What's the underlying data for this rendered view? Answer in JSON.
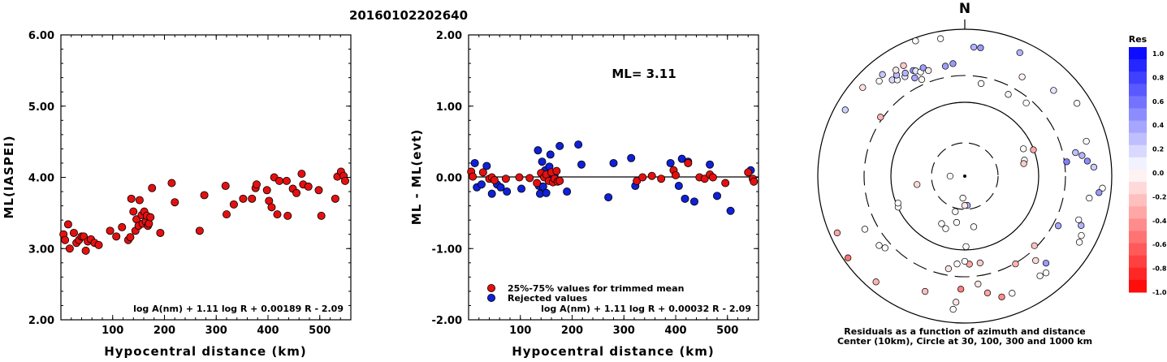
{
  "title": "20160102202640",
  "chart_data": [
    {
      "type": "scatter",
      "ylabel": "ML(IASPEI)",
      "xlabel": "Hypocentral distance (km)",
      "xlim": [
        0,
        560
      ],
      "ylim": [
        2.0,
        6.0
      ],
      "x_ticks": [
        "100",
        "200",
        "300",
        "400",
        "500"
      ],
      "y_ticks": [
        "2.00",
        "3.00",
        "4.00",
        "5.00",
        "6.00"
      ],
      "formula": "log A(nm) + 1.11 log R + 0.00189 R - 2.09",
      "marker_color": "#e41010",
      "points": [
        [
          5,
          3.2
        ],
        [
          8,
          3.12
        ],
        [
          14,
          3.34
        ],
        [
          17,
          3.0
        ],
        [
          25,
          3.22
        ],
        [
          30,
          3.08
        ],
        [
          35,
          3.12
        ],
        [
          40,
          3.17
        ],
        [
          44,
          3.17
        ],
        [
          48,
          2.97
        ],
        [
          52,
          3.1
        ],
        [
          58,
          3.13
        ],
        [
          65,
          3.08
        ],
        [
          73,
          3.05
        ],
        [
          95,
          3.25
        ],
        [
          107,
          3.17
        ],
        [
          118,
          3.3
        ],
        [
          130,
          3.12
        ],
        [
          134,
          3.16
        ],
        [
          136,
          3.7
        ],
        [
          140,
          3.52
        ],
        [
          144,
          3.25
        ],
        [
          146,
          3.41
        ],
        [
          150,
          3.32
        ],
        [
          152,
          3.68
        ],
        [
          156,
          3.47
        ],
        [
          158,
          3.35
        ],
        [
          161,
          3.52
        ],
        [
          164,
          3.38
        ],
        [
          166,
          3.46
        ],
        [
          168,
          3.32
        ],
        [
          170,
          3.35
        ],
        [
          173,
          3.44
        ],
        [
          176,
          3.85
        ],
        [
          192,
          3.22
        ],
        [
          214,
          3.92
        ],
        [
          220,
          3.65
        ],
        [
          268,
          3.25
        ],
        [
          277,
          3.75
        ],
        [
          318,
          3.88
        ],
        [
          320,
          3.48
        ],
        [
          334,
          3.62
        ],
        [
          352,
          3.7
        ],
        [
          369,
          3.7
        ],
        [
          376,
          3.85
        ],
        [
          378,
          3.9
        ],
        [
          398,
          3.82
        ],
        [
          402,
          3.67
        ],
        [
          407,
          3.58
        ],
        [
          412,
          4.0
        ],
        [
          418,
          3.48
        ],
        [
          422,
          3.95
        ],
        [
          436,
          3.95
        ],
        [
          438,
          3.46
        ],
        [
          448,
          3.84
        ],
        [
          455,
          3.78
        ],
        [
          465,
          4.05
        ],
        [
          468,
          3.9
        ],
        [
          478,
          3.87
        ],
        [
          498,
          3.82
        ],
        [
          503,
          3.46
        ],
        [
          530,
          3.7
        ],
        [
          534,
          4.01
        ],
        [
          541,
          4.08
        ],
        [
          546,
          4.02
        ],
        [
          549,
          3.95
        ]
      ]
    },
    {
      "type": "scatter",
      "ylabel": "ML - ML(evt)",
      "xlabel": "Hypocentral distance (km)",
      "xlim": [
        0,
        560
      ],
      "ylim": [
        -2.0,
        2.0
      ],
      "x_ticks": [
        "100",
        "200",
        "300",
        "400",
        "500"
      ],
      "y_ticks": [
        "-2.00",
        "-1.00",
        "0.00",
        "1.00",
        "2.00"
      ],
      "annotation": "ML= 3.11",
      "formula": "log A(nm) + 1.11 log R + 0.00032 R - 2.09",
      "legend": [
        {
          "name": "25%-75% values for trimmed mean",
          "color": "#e41010"
        },
        {
          "name": "Rejected values",
          "color": "#1020d8"
        }
      ],
      "series": [
        {
          "name": "25%-75% values for trimmed mean",
          "color": "#e41010",
          "points": [
            [
              5,
              0.08
            ],
            [
              8,
              0.01
            ],
            [
              28,
              0.07
            ],
            [
              40,
              -0.02
            ],
            [
              45,
              0.0
            ],
            [
              50,
              -0.04
            ],
            [
              72,
              -0.02
            ],
            [
              98,
              0.0
            ],
            [
              118,
              -0.01
            ],
            [
              132,
              -0.08
            ],
            [
              140,
              0.06
            ],
            [
              146,
              0.0
            ],
            [
              150,
              0.04
            ],
            [
              155,
              -0.05
            ],
            [
              160,
              0.07
            ],
            [
              163,
              -0.07
            ],
            [
              166,
              -0.02
            ],
            [
              170,
              0.09
            ],
            [
              172,
              -0.06
            ],
            [
              176,
              -0.05
            ],
            [
              325,
              -0.05
            ],
            [
              336,
              0.0
            ],
            [
              354,
              0.02
            ],
            [
              372,
              -0.02
            ],
            [
              396,
              0.1
            ],
            [
              400,
              0.03
            ],
            [
              424,
              0.2
            ],
            [
              446,
              0.0
            ],
            [
              456,
              -0.02
            ],
            [
              466,
              0.04
            ],
            [
              472,
              0.0
            ],
            [
              496,
              -0.08
            ],
            [
              540,
              0.07
            ],
            [
              549,
              -0.02
            ],
            [
              551,
              -0.06
            ]
          ]
        },
        {
          "name": "Rejected values",
          "color": "#1020d8",
          "points": [
            [
              12,
              0.2
            ],
            [
              16,
              -0.14
            ],
            [
              25,
              -0.1
            ],
            [
              35,
              0.16
            ],
            [
              45,
              -0.23
            ],
            [
              55,
              -0.1
            ],
            [
              62,
              -0.14
            ],
            [
              74,
              -0.2
            ],
            [
              102,
              -0.16
            ],
            [
              134,
              0.38
            ],
            [
              136,
              -0.12
            ],
            [
              138,
              -0.23
            ],
            [
              142,
              0.22
            ],
            [
              144,
              -0.13
            ],
            [
              148,
              0.1
            ],
            [
              150,
              -0.22
            ],
            [
              156,
              0.15
            ],
            [
              158,
              0.32
            ],
            [
              162,
              0.0
            ],
            [
              166,
              0.04
            ],
            [
              176,
              0.44
            ],
            [
              190,
              -0.2
            ],
            [
              212,
              0.46
            ],
            [
              218,
              0.18
            ],
            [
              270,
              -0.28
            ],
            [
              280,
              0.2
            ],
            [
              314,
              0.27
            ],
            [
              322,
              -0.12
            ],
            [
              390,
              0.2
            ],
            [
              406,
              -0.12
            ],
            [
              412,
              0.26
            ],
            [
              418,
              -0.3
            ],
            [
              424,
              0.22
            ],
            [
              436,
              -0.34
            ],
            [
              466,
              0.18
            ],
            [
              480,
              -0.26
            ],
            [
              506,
              -0.47
            ],
            [
              545,
              0.1
            ]
          ]
        }
      ]
    },
    {
      "type": "scatter",
      "projection": "polar",
      "north_label": "N",
      "caption_line1": "Residuals as a function of azimuth and distance",
      "caption_line2": "Center (10km), Circle at 30, 100, 300 and 1000 km",
      "colorbar_title": "Res",
      "colorbar_labels": [
        "1.0",
        "0.8",
        "0.6",
        "0.4",
        "0.2",
        "0.0",
        "-0.2",
        "-0.4",
        "-0.6",
        "-0.8",
        "-1.0"
      ],
      "color_high": "#0000ff",
      "color_low": "#ff0000",
      "circles_km": [
        30,
        100,
        300,
        1000
      ],
      "stations": [
        {
          "az": -125,
          "r": 0.97,
          "res": -0.55
        },
        {
          "az": -114,
          "r": 0.95,
          "res": -0.35
        },
        {
          "az": -61,
          "r": 0.93,
          "res": 0.18
        },
        {
          "az": -49,
          "r": 0.92,
          "res": -0.12
        },
        {
          "az": -42,
          "r": 0.87,
          "res": 0.0
        },
        {
          "az": -39,
          "r": 0.89,
          "res": 0.22
        },
        {
          "az": -37,
          "r": 0.82,
          "res": 0.15
        },
        {
          "az": -35,
          "r": 0.8,
          "res": 0.05
        },
        {
          "az": -34,
          "r": 0.83,
          "res": 0.25
        },
        {
          "az": -33,
          "r": 0.86,
          "res": -0.1
        },
        {
          "az": -31,
          "r": 0.79,
          "res": 0.1
        },
        {
          "az": -30,
          "r": 0.81,
          "res": 0.3
        },
        {
          "az": -29,
          "r": 0.86,
          "res": -0.22
        },
        {
          "az": -27,
          "r": 0.75,
          "res": 0.35
        },
        {
          "az": -26,
          "r": 0.8,
          "res": 0.4
        },
        {
          "az": -25,
          "r": 0.79,
          "res": 0.1
        },
        {
          "az": -23,
          "r": 0.77,
          "res": 0.0
        },
        {
          "az": -21,
          "r": 0.79,
          "res": 0.38
        },
        {
          "az": -19,
          "r": 0.76,
          "res": -0.08
        },
        {
          "az": -10,
          "r": 0.76,
          "res": 0.38
        },
        {
          "az": -6,
          "r": 0.77,
          "res": 0.4
        },
        {
          "az": 10,
          "r": 0.64,
          "res": 0.0
        },
        {
          "az": 4,
          "r": 0.88,
          "res": 0.3
        },
        {
          "az": 7,
          "r": 0.88,
          "res": 0.4
        },
        {
          "az": 24,
          "r": 0.92,
          "res": 0.3
        },
        {
          "az": 28,
          "r": 0.63,
          "res": -0.05
        },
        {
          "az": 46,
          "r": 0.84,
          "res": 0.1
        },
        {
          "az": 57,
          "r": 0.91,
          "res": 0.0
        },
        {
          "az": 65,
          "r": 0.44,
          "res": 0.0
        },
        {
          "az": 69,
          "r": 0.5,
          "res": -0.35
        },
        {
          "az": 74,
          "r": 0.86,
          "res": 0.0
        },
        {
          "az": 75,
          "r": 0.42,
          "res": 0.0
        },
        {
          "az": 78,
          "r": 0.41,
          "res": -0.2
        },
        {
          "az": 78,
          "r": 0.77,
          "res": 0.25
        },
        {
          "az": 80,
          "r": 0.81,
          "res": 0.3
        },
        {
          "az": 82,
          "r": 0.7,
          "res": 0.5
        },
        {
          "az": 83,
          "r": 0.84,
          "res": 0.45
        },
        {
          "az": 86,
          "r": 0.88,
          "res": 0.2
        },
        {
          "az": 95,
          "r": 0.94,
          "res": 0.0
        },
        {
          "az": 97,
          "r": 0.92,
          "res": 0.4
        },
        {
          "az": 100,
          "r": 0.86,
          "res": 0.0
        },
        {
          "az": 111,
          "r": 0.83,
          "res": 0.0
        },
        {
          "az": 113,
          "r": 0.86,
          "res": 0.3
        },
        {
          "az": 117,
          "r": 0.89,
          "res": 0.0
        },
        {
          "az": 118,
          "r": 0.72,
          "res": 0.35
        },
        {
          "az": 120,
          "r": 0.9,
          "res": 0.0
        },
        {
          "az": 137,
          "r": 0.81,
          "res": 0.4
        },
        {
          "az": 140,
          "r": 0.86,
          "res": 0.0
        },
        {
          "az": 143,
          "r": 0.85,
          "res": 0.0
        },
        {
          "az": 158,
          "r": 0.86,
          "res": 0.0
        },
        {
          "az": 163,
          "r": 0.86,
          "res": -0.45
        },
        {
          "az": 169,
          "r": 0.81,
          "res": -0.35
        },
        {
          "az": 173,
          "r": 0.74,
          "res": -0.1
        },
        {
          "az": 177,
          "r": 0.6,
          "res": -0.35
        },
        {
          "az": -178,
          "r": 0.77,
          "res": -0.5
        },
        {
          "az": -176,
          "r": 0.86,
          "res": -0.1
        },
        {
          "az": -175,
          "r": 0.91,
          "res": 0.0
        },
        {
          "az": -170,
          "r": 0.64,
          "res": -0.1
        },
        {
          "az": -161,
          "r": 0.83,
          "res": -0.25
        },
        {
          "az": -154,
          "r": 0.36,
          "res": 0.0
        },
        {
          "az": -140,
          "r": 0.94,
          "res": -0.3
        },
        {
          "az": -132,
          "r": 0.73,
          "res": 0.0
        },
        {
          "az": -129,
          "r": 0.75,
          "res": 0.0
        },
        {
          "az": -118,
          "r": 0.77,
          "res": 0.0
        },
        {
          "az": -115,
          "r": 0.5,
          "res": 0.0
        },
        {
          "az": -112,
          "r": 0.49,
          "res": 0.0
        },
        {
          "az": -100,
          "r": 0.33,
          "res": -0.15
        },
        {
          "az": -55,
          "r": 0.7,
          "res": -0.3
        },
        {
          "az": -24,
          "r": 0.72,
          "res": -0.05
        },
        {
          "az": -160,
          "r": 0.38,
          "res": 0.0
        },
        {
          "az": -180,
          "r": 0.58,
          "res": 0.0
        },
        {
          "az": 179,
          "r": 0.48,
          "res": 0.0
        },
        {
          "az": 135,
          "r": 0.67,
          "res": -0.25
        },
        {
          "az": 140,
          "r": 0.75,
          "res": -0.15
        },
        {
          "az": 150,
          "r": 0.69,
          "res": -0.3
        },
        {
          "az": 170,
          "r": 0.6,
          "res": -0.2
        },
        {
          "az": -20,
          "r": 0.98,
          "res": 0.0
        },
        {
          "az": -10,
          "r": 0.95,
          "res": 0.0
        },
        {
          "az": 30,
          "r": 0.78,
          "res": -0.05
        },
        {
          "az": 40,
          "r": 0.65,
          "res": 0.0
        },
        {
          "az": 170,
          "r": 0.35,
          "res": 0.0
        },
        {
          "az": 175,
          "r": 0.2,
          "res": 0.3
        },
        {
          "az": -165,
          "r": 0.25,
          "res": 0.0
        },
        {
          "az": -170,
          "r": 0.32,
          "res": 0.0
        },
        {
          "az": -175,
          "r": 0.6,
          "res": 0.0
        },
        {
          "az": -90,
          "r": 0.1,
          "res": 0.0
        },
        {
          "az": -175,
          "r": 0.15,
          "res": 0.0
        },
        {
          "az": 180,
          "r": 0.2,
          "res": -0.1
        }
      ]
    }
  ]
}
